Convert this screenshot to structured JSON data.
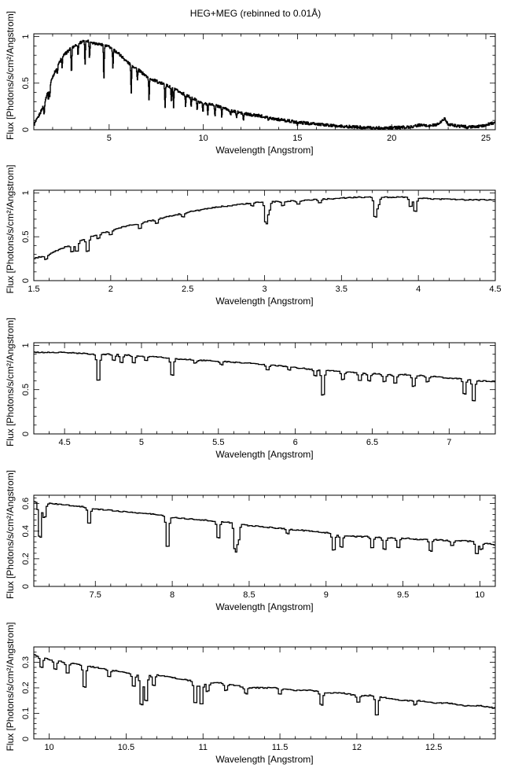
{
  "title": "HEG+MEG (rebinned to 0.01Å)",
  "chart_data": [
    {
      "type": "line",
      "xlabel": "Wavelength [Angstrom]",
      "ylabel": "Flux [Photons/s/cm²/Angstrom]",
      "xlim": [
        1.0,
        25.5
      ],
      "ylim": [
        0,
        1.03
      ],
      "xticks": [
        5,
        10,
        15,
        20,
        25
      ],
      "yticks": [
        0,
        0.5,
        1
      ],
      "grid": false,
      "series": [
        {
          "x": [
            1.0,
            1.2,
            1.5,
            2.0,
            2.5,
            3.0,
            3.5,
            3.8,
            4.2,
            4.5,
            5.0,
            5.5,
            6.0,
            6.5,
            7.0,
            7.5,
            8.0,
            8.5,
            9.0,
            9.5,
            10.0,
            10.5,
            11.0,
            11.5,
            12.0,
            12.5,
            13.0,
            14.0,
            15.0,
            16.0,
            17.0,
            18.0,
            19.0,
            20.0,
            21.0,
            21.5,
            22.0,
            22.5,
            22.8,
            23.0,
            23.5,
            24.0,
            24.5,
            25.0,
            25.5
          ],
          "y": [
            0.05,
            0.12,
            0.25,
            0.57,
            0.78,
            0.88,
            0.94,
            0.96,
            0.93,
            0.92,
            0.89,
            0.82,
            0.72,
            0.65,
            0.57,
            0.52,
            0.48,
            0.43,
            0.38,
            0.33,
            0.28,
            0.27,
            0.24,
            0.2,
            0.18,
            0.16,
            0.15,
            0.11,
            0.08,
            0.06,
            0.04,
            0.03,
            0.02,
            0.02,
            0.03,
            0.05,
            0.04,
            0.06,
            0.12,
            0.06,
            0.04,
            0.03,
            0.03,
            0.05,
            0.08
          ]
        }
      ],
      "absorption_lines": [
        {
          "x": 1.55,
          "depth": 0.12
        },
        {
          "x": 1.78,
          "depth": 0.1
        },
        {
          "x": 1.85,
          "depth": 0.12
        },
        {
          "x": 2.25,
          "depth": 0.08
        },
        {
          "x": 2.5,
          "depth": 0.1
        },
        {
          "x": 3.0,
          "depth": 0.28
        },
        {
          "x": 3.35,
          "depth": 0.12
        },
        {
          "x": 3.72,
          "depth": 0.25
        },
        {
          "x": 3.96,
          "depth": 0.18
        },
        {
          "x": 4.72,
          "depth": 0.35
        },
        {
          "x": 5.2,
          "depth": 0.2
        },
        {
          "x": 6.17,
          "depth": 0.3
        },
        {
          "x": 6.5,
          "depth": 0.12
        },
        {
          "x": 7.12,
          "depth": 0.24
        },
        {
          "x": 7.97,
          "depth": 0.23
        },
        {
          "x": 8.3,
          "depth": 0.14
        },
        {
          "x": 8.42,
          "depth": 0.2
        },
        {
          "x": 9.06,
          "depth": 0.12
        },
        {
          "x": 9.35,
          "depth": 0.1
        },
        {
          "x": 9.68,
          "depth": 0.1
        },
        {
          "x": 9.98,
          "depth": 0.1
        },
        {
          "x": 10.24,
          "depth": 0.1
        },
        {
          "x": 10.62,
          "depth": 0.13
        },
        {
          "x": 10.98,
          "depth": 0.1
        },
        {
          "x": 11.45,
          "depth": 0.05
        },
        {
          "x": 11.77,
          "depth": 0.06
        },
        {
          "x": 12.13,
          "depth": 0.08
        },
        {
          "x": 13.45,
          "depth": 0.04
        },
        {
          "x": 15.0,
          "depth": 0.02
        }
      ]
    },
    {
      "type": "line",
      "xlabel": "Wavelength [Angstrom]",
      "ylabel": "Flux [Photons/s/cm²/Angstrom]",
      "xlim": [
        1.5,
        4.5
      ],
      "ylim": [
        0,
        1.03
      ],
      "xticks": [
        1.5,
        2,
        2.5,
        3,
        3.5,
        4,
        4.5
      ],
      "yticks": [
        0,
        0.5,
        1
      ],
      "grid": false,
      "series": [
        {
          "x": [
            1.5,
            1.6,
            1.7,
            1.8,
            1.9,
            2.0,
            2.1,
            2.2,
            2.3,
            2.4,
            2.5,
            2.6,
            2.7,
            2.8,
            2.9,
            3.0,
            3.1,
            3.2,
            3.3,
            3.4,
            3.5,
            3.6,
            3.7,
            3.8,
            3.9,
            4.0,
            4.1,
            4.2,
            4.3,
            4.4,
            4.5
          ],
          "y": [
            0.25,
            0.3,
            0.38,
            0.45,
            0.52,
            0.57,
            0.62,
            0.66,
            0.7,
            0.74,
            0.78,
            0.81,
            0.84,
            0.86,
            0.88,
            0.9,
            0.9,
            0.91,
            0.92,
            0.93,
            0.94,
            0.95,
            0.95,
            0.95,
            0.95,
            0.94,
            0.93,
            0.93,
            0.92,
            0.92,
            0.92
          ]
        }
      ],
      "absorption_lines": [
        {
          "x": 1.58,
          "depth": 0.06
        },
        {
          "x": 1.75,
          "depth": 0.1
        },
        {
          "x": 1.78,
          "depth": 0.12
        },
        {
          "x": 1.85,
          "depth": 0.18
        },
        {
          "x": 1.92,
          "depth": 0.06
        },
        {
          "x": 2.0,
          "depth": 0.06
        },
        {
          "x": 2.19,
          "depth": 0.08
        },
        {
          "x": 2.3,
          "depth": 0.05
        },
        {
          "x": 2.47,
          "depth": 0.05
        },
        {
          "x": 2.92,
          "depth": 0.04
        },
        {
          "x": 3.01,
          "depth": 0.28
        },
        {
          "x": 3.03,
          "depth": 0.12
        },
        {
          "x": 3.12,
          "depth": 0.06
        },
        {
          "x": 3.22,
          "depth": 0.05
        },
        {
          "x": 3.36,
          "depth": 0.05
        },
        {
          "x": 3.72,
          "depth": 0.26
        },
        {
          "x": 3.74,
          "depth": 0.1
        },
        {
          "x": 3.95,
          "depth": 0.12
        },
        {
          "x": 3.98,
          "depth": 0.18
        }
      ]
    },
    {
      "type": "line",
      "xlabel": "Wavelength [Angstrom]",
      "ylabel": "Flux [Photons/s/cm²/Angstrom]",
      "xlim": [
        4.3,
        7.3
      ],
      "ylim": [
        0,
        1.03
      ],
      "xticks": [
        4.5,
        5,
        5.5,
        6,
        6.5,
        7
      ],
      "yticks": [
        0,
        0.5,
        1
      ],
      "grid": false,
      "series": [
        {
          "x": [
            4.3,
            4.4,
            4.5,
            4.6,
            4.7,
            4.8,
            4.9,
            5.0,
            5.1,
            5.2,
            5.3,
            5.4,
            5.5,
            5.6,
            5.7,
            5.8,
            5.9,
            6.0,
            6.1,
            6.2,
            6.3,
            6.4,
            6.5,
            6.6,
            6.7,
            6.8,
            6.9,
            7.0,
            7.1,
            7.2,
            7.3
          ],
          "y": [
            0.92,
            0.92,
            0.92,
            0.91,
            0.9,
            0.9,
            0.89,
            0.88,
            0.87,
            0.85,
            0.84,
            0.83,
            0.82,
            0.81,
            0.8,
            0.78,
            0.77,
            0.75,
            0.73,
            0.72,
            0.7,
            0.69,
            0.68,
            0.67,
            0.67,
            0.66,
            0.65,
            0.63,
            0.62,
            0.6,
            0.59
          ]
        }
      ],
      "absorption_lines": [
        {
          "x": 4.72,
          "depth": 0.36
        },
        {
          "x": 4.82,
          "depth": 0.08
        },
        {
          "x": 4.87,
          "depth": 0.1
        },
        {
          "x": 4.95,
          "depth": 0.1
        },
        {
          "x": 5.03,
          "depth": 0.06
        },
        {
          "x": 5.2,
          "depth": 0.22
        },
        {
          "x": 5.35,
          "depth": 0.04
        },
        {
          "x": 5.52,
          "depth": 0.04
        },
        {
          "x": 5.82,
          "depth": 0.06
        },
        {
          "x": 5.96,
          "depth": 0.04
        },
        {
          "x": 6.13,
          "depth": 0.08
        },
        {
          "x": 6.18,
          "depth": 0.34
        },
        {
          "x": 6.31,
          "depth": 0.1
        },
        {
          "x": 6.42,
          "depth": 0.1
        },
        {
          "x": 6.48,
          "depth": 0.1
        },
        {
          "x": 6.58,
          "depth": 0.1
        },
        {
          "x": 6.65,
          "depth": 0.12
        },
        {
          "x": 6.77,
          "depth": 0.15
        },
        {
          "x": 6.86,
          "depth": 0.08
        },
        {
          "x": 7.1,
          "depth": 0.2
        },
        {
          "x": 7.16,
          "depth": 0.28
        }
      ]
    },
    {
      "type": "line",
      "xlabel": "Wavelength [Angstrom]",
      "ylabel": "Flux [Photons/s/cm²/Angstrom]",
      "xlim": [
        7.1,
        10.1
      ],
      "ylim": [
        0,
        0.66
      ],
      "xticks": [
        7.5,
        8,
        8.5,
        9,
        9.5,
        10
      ],
      "yticks": [
        0,
        0.2,
        0.4,
        0.6
      ],
      "grid": false,
      "series": [
        {
          "x": [
            7.1,
            7.2,
            7.3,
            7.4,
            7.5,
            7.6,
            7.7,
            7.8,
            7.9,
            8.0,
            8.1,
            8.2,
            8.3,
            8.4,
            8.5,
            8.6,
            8.7,
            8.8,
            8.9,
            9.0,
            9.1,
            9.2,
            9.3,
            9.4,
            9.5,
            9.6,
            9.7,
            9.8,
            9.9,
            10.0,
            10.1
          ],
          "y": [
            0.61,
            0.6,
            0.59,
            0.58,
            0.56,
            0.55,
            0.54,
            0.53,
            0.52,
            0.5,
            0.49,
            0.48,
            0.47,
            0.46,
            0.44,
            0.43,
            0.42,
            0.41,
            0.4,
            0.39,
            0.37,
            0.36,
            0.36,
            0.35,
            0.35,
            0.34,
            0.34,
            0.33,
            0.33,
            0.32,
            0.3
          ]
        }
      ],
      "absorption_lines": [
        {
          "x": 7.14,
          "depth": 0.3
        },
        {
          "x": 7.17,
          "depth": 0.12
        },
        {
          "x": 7.46,
          "depth": 0.13
        },
        {
          "x": 7.97,
          "depth": 0.26
        },
        {
          "x": 8.3,
          "depth": 0.14
        },
        {
          "x": 8.41,
          "depth": 0.22
        },
        {
          "x": 8.43,
          "depth": 0.14
        },
        {
          "x": 8.75,
          "depth": 0.04
        },
        {
          "x": 9.05,
          "depth": 0.14
        },
        {
          "x": 9.1,
          "depth": 0.1
        },
        {
          "x": 9.3,
          "depth": 0.1
        },
        {
          "x": 9.38,
          "depth": 0.1
        },
        {
          "x": 9.47,
          "depth": 0.08
        },
        {
          "x": 9.68,
          "depth": 0.1
        },
        {
          "x": 9.82,
          "depth": 0.04
        },
        {
          "x": 9.98,
          "depth": 0.1
        },
        {
          "x": 10.01,
          "depth": 0.06
        }
      ]
    },
    {
      "type": "line",
      "xlabel": "Wavelength [Angstrom]",
      "ylabel": "Flux [Photons/s/cm²/Angstrom]",
      "xlim": [
        9.9,
        12.9
      ],
      "ylim": [
        0,
        0.36
      ],
      "xticks": [
        10,
        10.5,
        11,
        11.5,
        12,
        12.5
      ],
      "yticks": [
        0,
        0.1,
        0.2,
        0.3
      ],
      "grid": false,
      "series": [
        {
          "x": [
            9.9,
            10.0,
            10.1,
            10.2,
            10.3,
            10.4,
            10.5,
            10.6,
            10.7,
            10.8,
            10.9,
            11.0,
            11.1,
            11.2,
            11.3,
            11.4,
            11.5,
            11.6,
            11.7,
            11.8,
            11.9,
            12.0,
            12.1,
            12.2,
            12.3,
            12.4,
            12.5,
            12.6,
            12.7,
            12.8,
            12.9
          ],
          "y": [
            0.33,
            0.31,
            0.3,
            0.29,
            0.28,
            0.27,
            0.26,
            0.25,
            0.25,
            0.24,
            0.23,
            0.22,
            0.22,
            0.21,
            0.2,
            0.2,
            0.2,
            0.19,
            0.19,
            0.18,
            0.18,
            0.17,
            0.17,
            0.16,
            0.15,
            0.15,
            0.14,
            0.14,
            0.13,
            0.13,
            0.12
          ]
        }
      ],
      "absorption_lines": [
        {
          "x": 9.95,
          "depth": 0.05
        },
        {
          "x": 10.04,
          "depth": 0.04
        },
        {
          "x": 10.12,
          "depth": 0.05
        },
        {
          "x": 10.23,
          "depth": 0.1
        },
        {
          "x": 10.39,
          "depth": 0.03
        },
        {
          "x": 10.55,
          "depth": 0.06
        },
        {
          "x": 10.6,
          "depth": 0.14
        },
        {
          "x": 10.63,
          "depth": 0.12
        },
        {
          "x": 10.68,
          "depth": 0.05
        },
        {
          "x": 10.95,
          "depth": 0.1
        },
        {
          "x": 10.99,
          "depth": 0.1
        },
        {
          "x": 11.03,
          "depth": 0.04
        },
        {
          "x": 11.15,
          "depth": 0.03
        },
        {
          "x": 11.28,
          "depth": 0.03
        },
        {
          "x": 11.5,
          "depth": 0.03
        },
        {
          "x": 11.77,
          "depth": 0.06
        },
        {
          "x": 12.01,
          "depth": 0.03
        },
        {
          "x": 12.13,
          "depth": 0.09
        },
        {
          "x": 12.38,
          "depth": 0.02
        }
      ]
    }
  ]
}
